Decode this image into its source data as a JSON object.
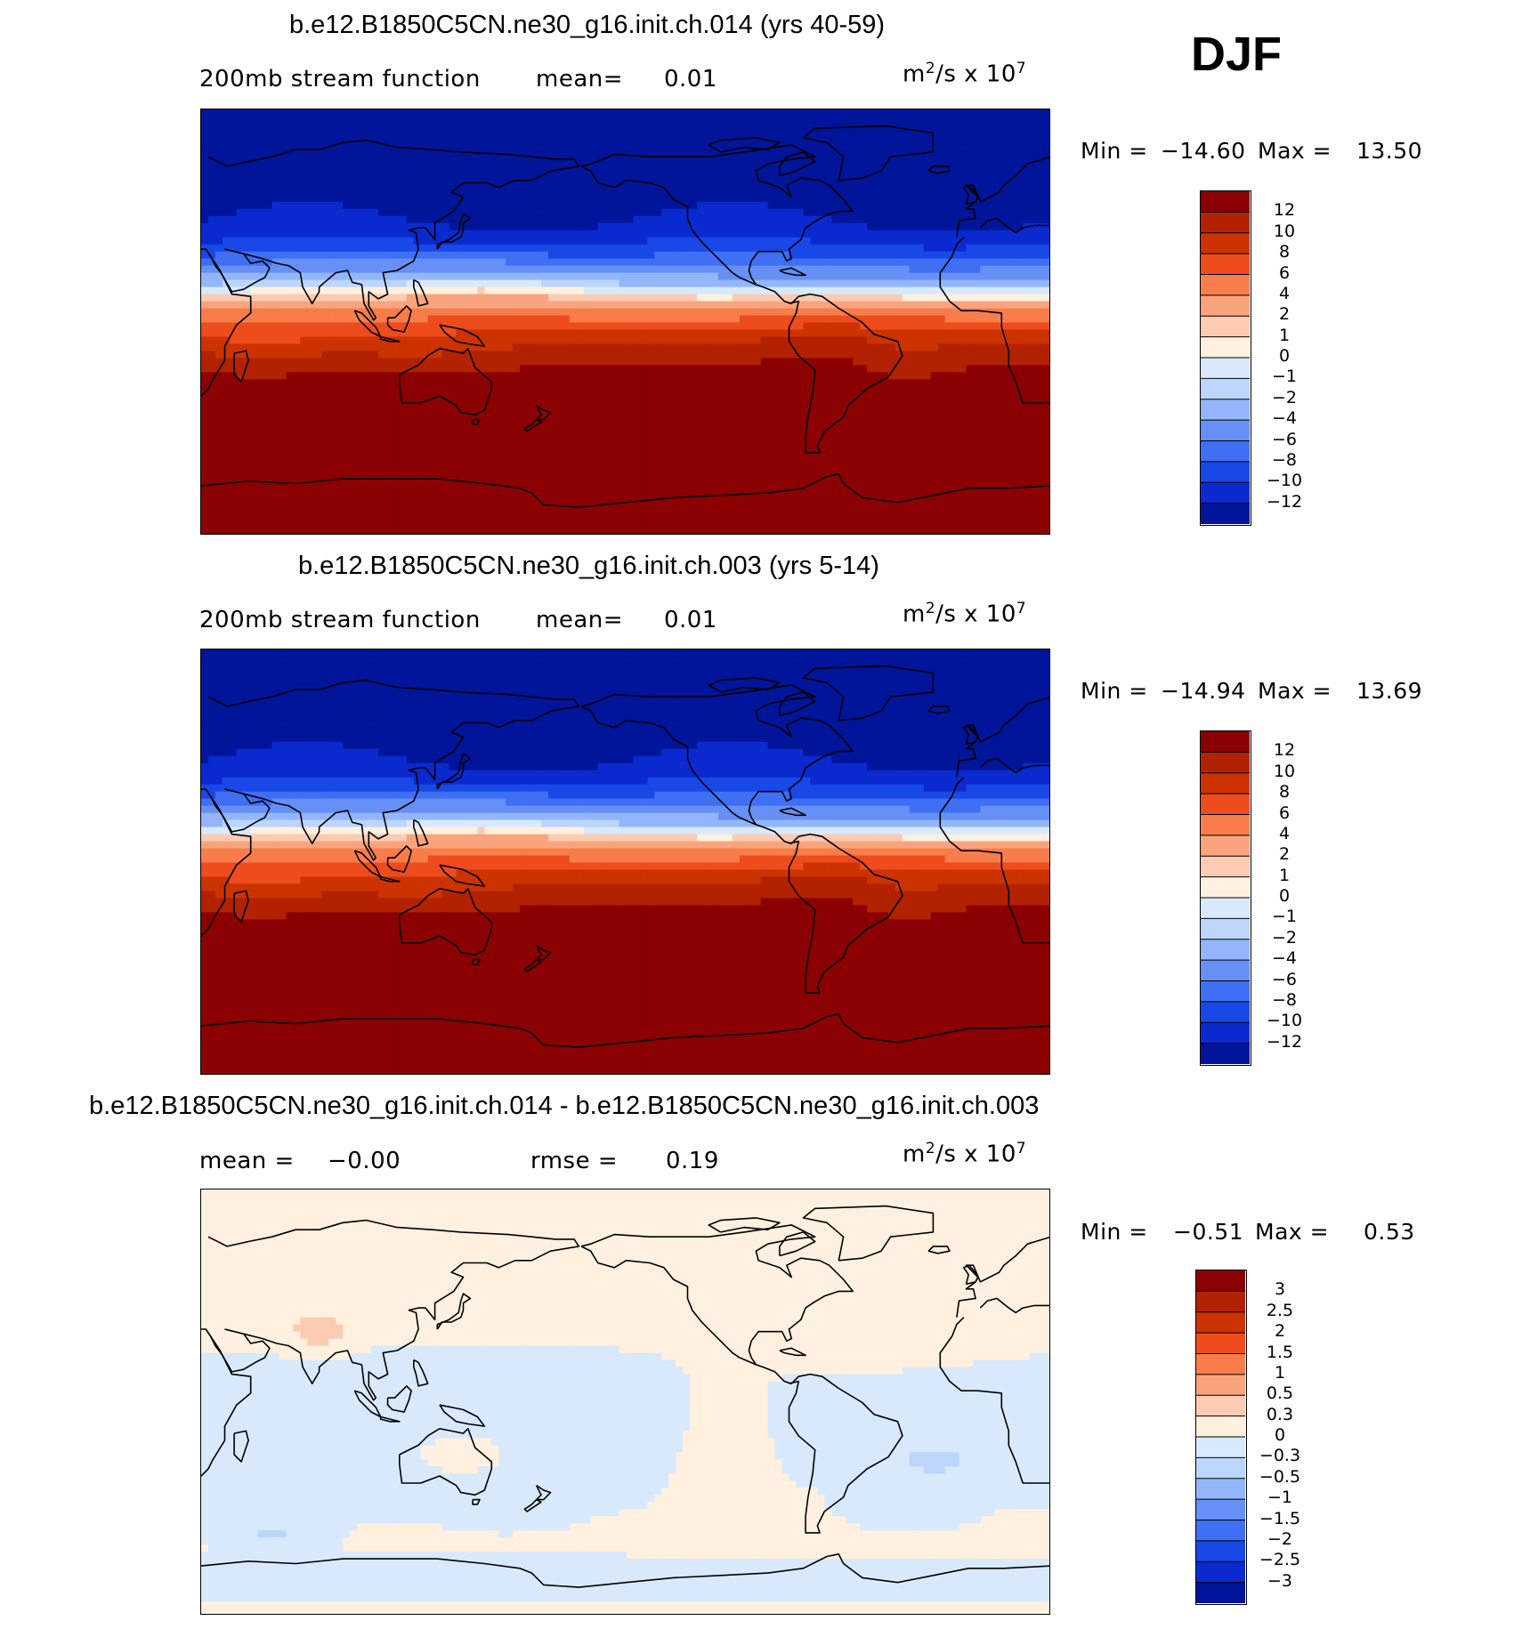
{
  "season": "DJF",
  "coast_color": "#000000",
  "palette": {
    "pos": [
      "#8b0000",
      "#b22200",
      "#cc3300",
      "#ee4c1d",
      "#f87d4a",
      "#f9a47c",
      "#fccbb1",
      "#fff0df"
    ],
    "neg": [
      "#d7e9fb",
      "#bcd5fb",
      "#92b6f9",
      "#6690f6",
      "#3f6ff2",
      "#1848e6",
      "#0a2ad0",
      "#00159a"
    ]
  },
  "panels": [
    {
      "title": "b.e12.B1850C5CN.ne30_g16.init.ch.014 (yrs 40-59)",
      "left_label": "200mb stream function",
      "stat1_label": "mean=",
      "stat1_value": "0.01",
      "units_text": "m",
      "units_sup1": "2",
      "units_rest": "/s x 10",
      "units_sup2": "7",
      "min_label": "Min =",
      "min_value": "−14.60",
      "max_label": "Max =",
      "max_value": "13.50",
      "ticks": [
        "12",
        "10",
        "8",
        "6",
        "4",
        "2",
        "1",
        "0",
        "−1",
        "−2",
        "−4",
        "−6",
        "−8",
        "−10",
        "−12"
      ],
      "field": "full"
    },
    {
      "title": "b.e12.B1850C5CN.ne30_g16.init.ch.003 (yrs 5-14)",
      "left_label": "200mb stream function",
      "stat1_label": "mean=",
      "stat1_value": "0.01",
      "units_text": "m",
      "units_sup1": "2",
      "units_rest": "/s x 10",
      "units_sup2": "7",
      "min_label": "Min =",
      "min_value": "−14.94",
      "max_label": "Max =",
      "max_value": "13.69",
      "ticks": [
        "12",
        "10",
        "8",
        "6",
        "4",
        "2",
        "1",
        "0",
        "−1",
        "−2",
        "−4",
        "−6",
        "−8",
        "−10",
        "−12"
      ],
      "field": "full"
    },
    {
      "title": "b.e12.B1850C5CN.ne30_g16.init.ch.014 - b.e12.B1850C5CN.ne30_g16.init.ch.003",
      "left_label": "mean =",
      "left_value": "−0.00",
      "stat1_label": "rmse =",
      "stat1_value": "0.19",
      "units_text": "m",
      "units_sup1": "2",
      "units_rest": "/s x 10",
      "units_sup2": "7",
      "min_label": "Min =",
      "min_value": "−0.51",
      "max_label": "Max =",
      "max_value": "0.53",
      "ticks": [
        "3",
        "2.5",
        "2",
        "1.5",
        "1",
        "0.5",
        "0.3",
        "0",
        "−0.3",
        "−0.5",
        "−1",
        "−1.5",
        "−2",
        "−2.5",
        "−3"
      ],
      "field": "diff"
    }
  ]
}
